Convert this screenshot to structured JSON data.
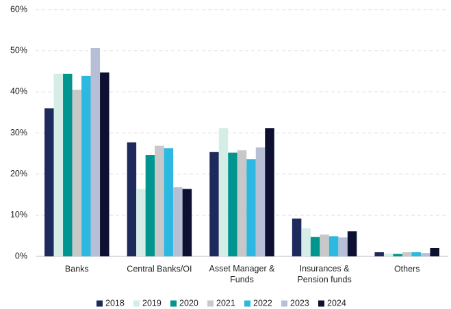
{
  "chart_data": {
    "type": "bar",
    "categories": [
      "Banks",
      "Central Banks/OI",
      "Asset Manager &\nFunds",
      "Insurances &\nPension funds",
      "Others"
    ],
    "series": [
      {
        "name": "2018",
        "color": "#1f2a5c",
        "values": [
          36.0,
          27.7,
          25.4,
          9.2,
          1.0
        ]
      },
      {
        "name": "2019",
        "color": "#d5ede6",
        "values": [
          44.4,
          16.4,
          31.2,
          6.8,
          0.7
        ]
      },
      {
        "name": "2020",
        "color": "#00958f",
        "values": [
          44.4,
          24.6,
          25.2,
          4.7,
          0.6
        ]
      },
      {
        "name": "2021",
        "color": "#c8c8c8",
        "values": [
          40.5,
          26.9,
          25.8,
          5.3,
          1.0
        ]
      },
      {
        "name": "2022",
        "color": "#2cb8e0",
        "values": [
          43.9,
          26.3,
          23.6,
          4.9,
          1.0
        ]
      },
      {
        "name": "2023",
        "color": "#b7bfd6",
        "values": [
          50.7,
          16.8,
          26.5,
          4.6,
          0.8
        ]
      },
      {
        "name": "2024",
        "color": "#0d1030",
        "values": [
          44.7,
          16.4,
          31.2,
          6.1,
          2.0
        ]
      }
    ],
    "ylim": [
      0,
      60
    ],
    "yticks": [
      {
        "value": 0,
        "label": "0%"
      },
      {
        "value": 10,
        "label": "10%"
      },
      {
        "value": 20,
        "label": "20%"
      },
      {
        "value": 30,
        "label": "30%"
      },
      {
        "value": 40,
        "label": "40%"
      },
      {
        "value": 50,
        "label": "50%"
      },
      {
        "value": 60,
        "label": "60%"
      }
    ],
    "grid": true,
    "legend": "bottom"
  }
}
